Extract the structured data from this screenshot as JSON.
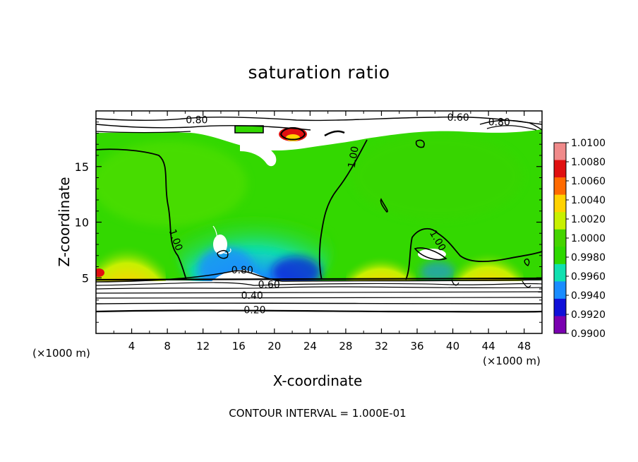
{
  "chart_data": {
    "type": "heatmap",
    "title": "saturation ratio",
    "xlabel": "X-coordinate",
    "ylabel": "Z-coordinate",
    "x_unit_left": "(×1000 m)",
    "x_unit_right": "(×1000 m)",
    "footer": "CONTOUR INTERVAL = 1.000E-01",
    "xlim": [
      0,
      50
    ],
    "ylim": [
      0,
      20
    ],
    "x_ticks": [
      "4",
      "8",
      "12",
      "16",
      "20",
      "24",
      "28",
      "32",
      "36",
      "40",
      "44",
      "48"
    ],
    "x_tick_values": [
      4,
      8,
      12,
      16,
      20,
      24,
      28,
      32,
      36,
      40,
      44,
      48
    ],
    "y_ticks": [
      "5",
      "10",
      "15"
    ],
    "y_tick_values": [
      5,
      10,
      15
    ],
    "colorbar": {
      "labels": [
        "1.0100",
        "1.0080",
        "1.0060",
        "1.0040",
        "1.0020",
        "1.0000",
        "0.9980",
        "0.9960",
        "0.9940",
        "0.9920",
        "0.9900"
      ],
      "colors": [
        "#f08a8a",
        "#e01010",
        "#ff6a00",
        "#ffd200",
        "#c8f000",
        "#44d400",
        "#2ed800",
        "#10e0b0",
        "#1a8cff",
        "#1010d8",
        "#7a00b0"
      ]
    },
    "contour_labels": [
      {
        "text": "0.80",
        "x": 11.3,
        "z": 18.9
      },
      {
        "text": "0.60",
        "x": 40.6,
        "z": 19.1
      },
      {
        "text": "0.80",
        "x": 45.2,
        "z": 18.7
      },
      {
        "text": "1.00",
        "x": 29.2,
        "z": 15.8
      },
      {
        "text": "1.00",
        "x": 8.6,
        "z": 8.3
      },
      {
        "text": "1.00",
        "x": 38.0,
        "z": 8.2
      },
      {
        "text": "0.80",
        "x": 16.4,
        "z": 5.4
      },
      {
        "text": "0.60",
        "x": 19.4,
        "z": 4.1
      },
      {
        "text": "0.40",
        "x": 17.5,
        "z": 3.1
      },
      {
        "text": "0.20",
        "x": 17.8,
        "z": 1.8
      }
    ]
  }
}
